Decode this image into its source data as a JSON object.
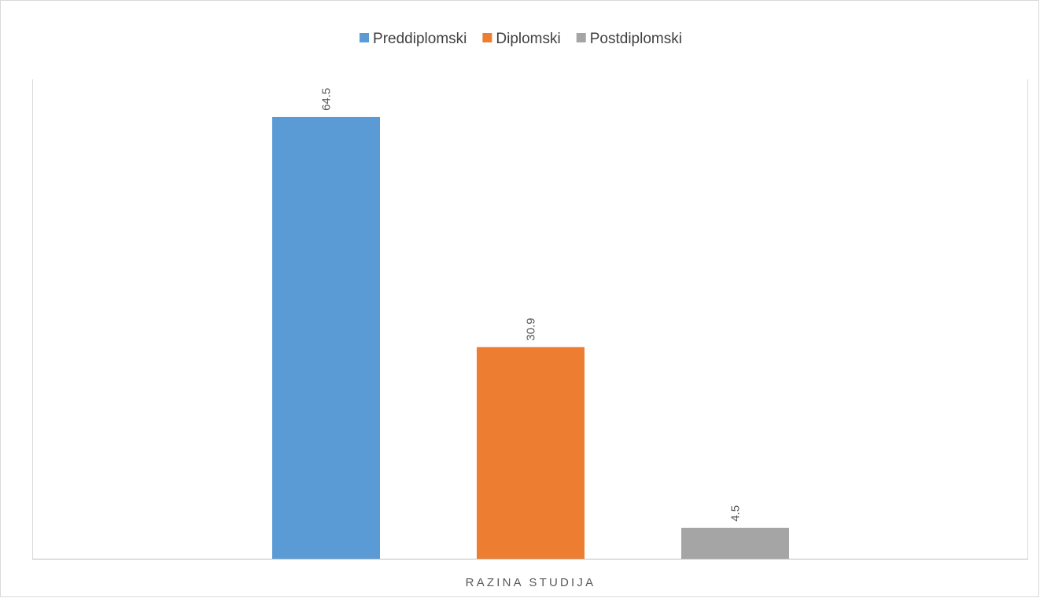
{
  "chart_data": {
    "type": "bar",
    "title": "",
    "xlabel": "RAZINA STUDIJA",
    "ylabel": "",
    "categories": [
      "RAZINA STUDIJA"
    ],
    "series": [
      {
        "name": "Preddiplomski",
        "values": [
          64.5
        ],
        "color": "#5b9bd5"
      },
      {
        "name": "Diplomski",
        "values": [
          30.9
        ],
        "color": "#ed7d31"
      },
      {
        "name": "Postdiplomski",
        "values": [
          4.5
        ],
        "color": "#a5a5a5"
      }
    ],
    "ylim": [
      0,
      70
    ],
    "grid": false,
    "legend_position": "top",
    "data_labels": [
      "64.5",
      "30.9",
      "4.5"
    ],
    "data_label_orientation": "rotated"
  },
  "colors": {
    "axis": "#bfbfbf",
    "frame": "#d9d9d9",
    "label_text": "#595959",
    "legend_text": "#404040"
  }
}
